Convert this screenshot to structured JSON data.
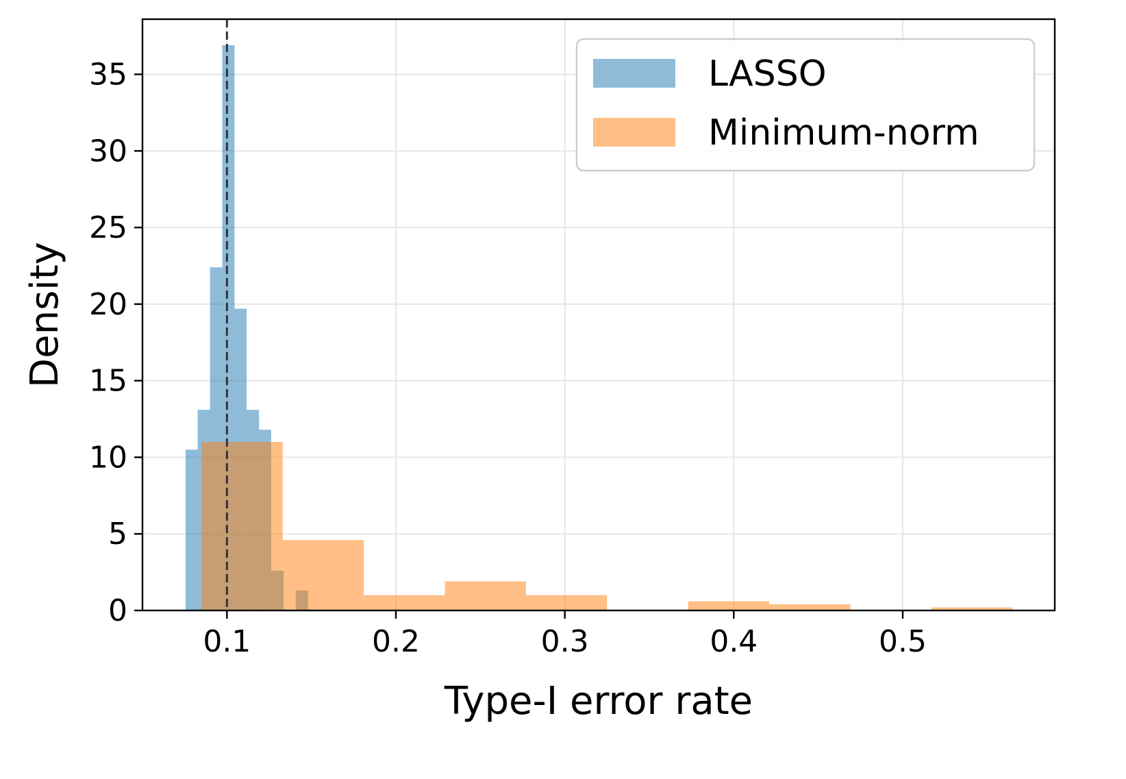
{
  "chart_data": {
    "type": "histogram",
    "xlabel": "Type-I error rate",
    "ylabel": "Density",
    "xlim": [
      0.05,
      0.59
    ],
    "ylim": [
      0,
      38.6
    ],
    "xticks": [
      0.1,
      0.2,
      0.3,
      0.4,
      0.5
    ],
    "xtick_labels": [
      "0.1",
      "0.2",
      "0.3",
      "0.4",
      "0.5"
    ],
    "yticks": [
      0,
      5,
      10,
      15,
      20,
      25,
      30,
      35
    ],
    "ytick_labels": [
      "0",
      "5",
      "10",
      "15",
      "20",
      "25",
      "30",
      "35"
    ],
    "grid": true,
    "legend_position": "top-right",
    "reference_line": {
      "x": 0.1,
      "style": "dashed",
      "color": "#333333"
    },
    "series": [
      {
        "name": "LASSO",
        "color": "#1f77b4",
        "alpha": 0.5,
        "bins": [
          0.0755,
          0.0827,
          0.09,
          0.0972,
          0.1045,
          0.1117,
          0.119,
          0.1262,
          0.1335,
          0.1407,
          0.148
        ],
        "values": [
          10.5,
          13.1,
          22.4,
          36.9,
          19.7,
          13.1,
          11.8,
          2.6,
          0.0,
          1.3
        ]
      },
      {
        "name": "Minimum-norm",
        "color": "#ff7f0e",
        "alpha": 0.5,
        "bins": [
          0.085,
          0.133,
          0.181,
          0.229,
          0.277,
          0.325,
          0.373,
          0.421,
          0.469,
          0.517,
          0.565
        ],
        "values": [
          11.0,
          4.6,
          1.0,
          1.9,
          1.0,
          0.0,
          0.6,
          0.4,
          0.0,
          0.2
        ]
      }
    ]
  }
}
